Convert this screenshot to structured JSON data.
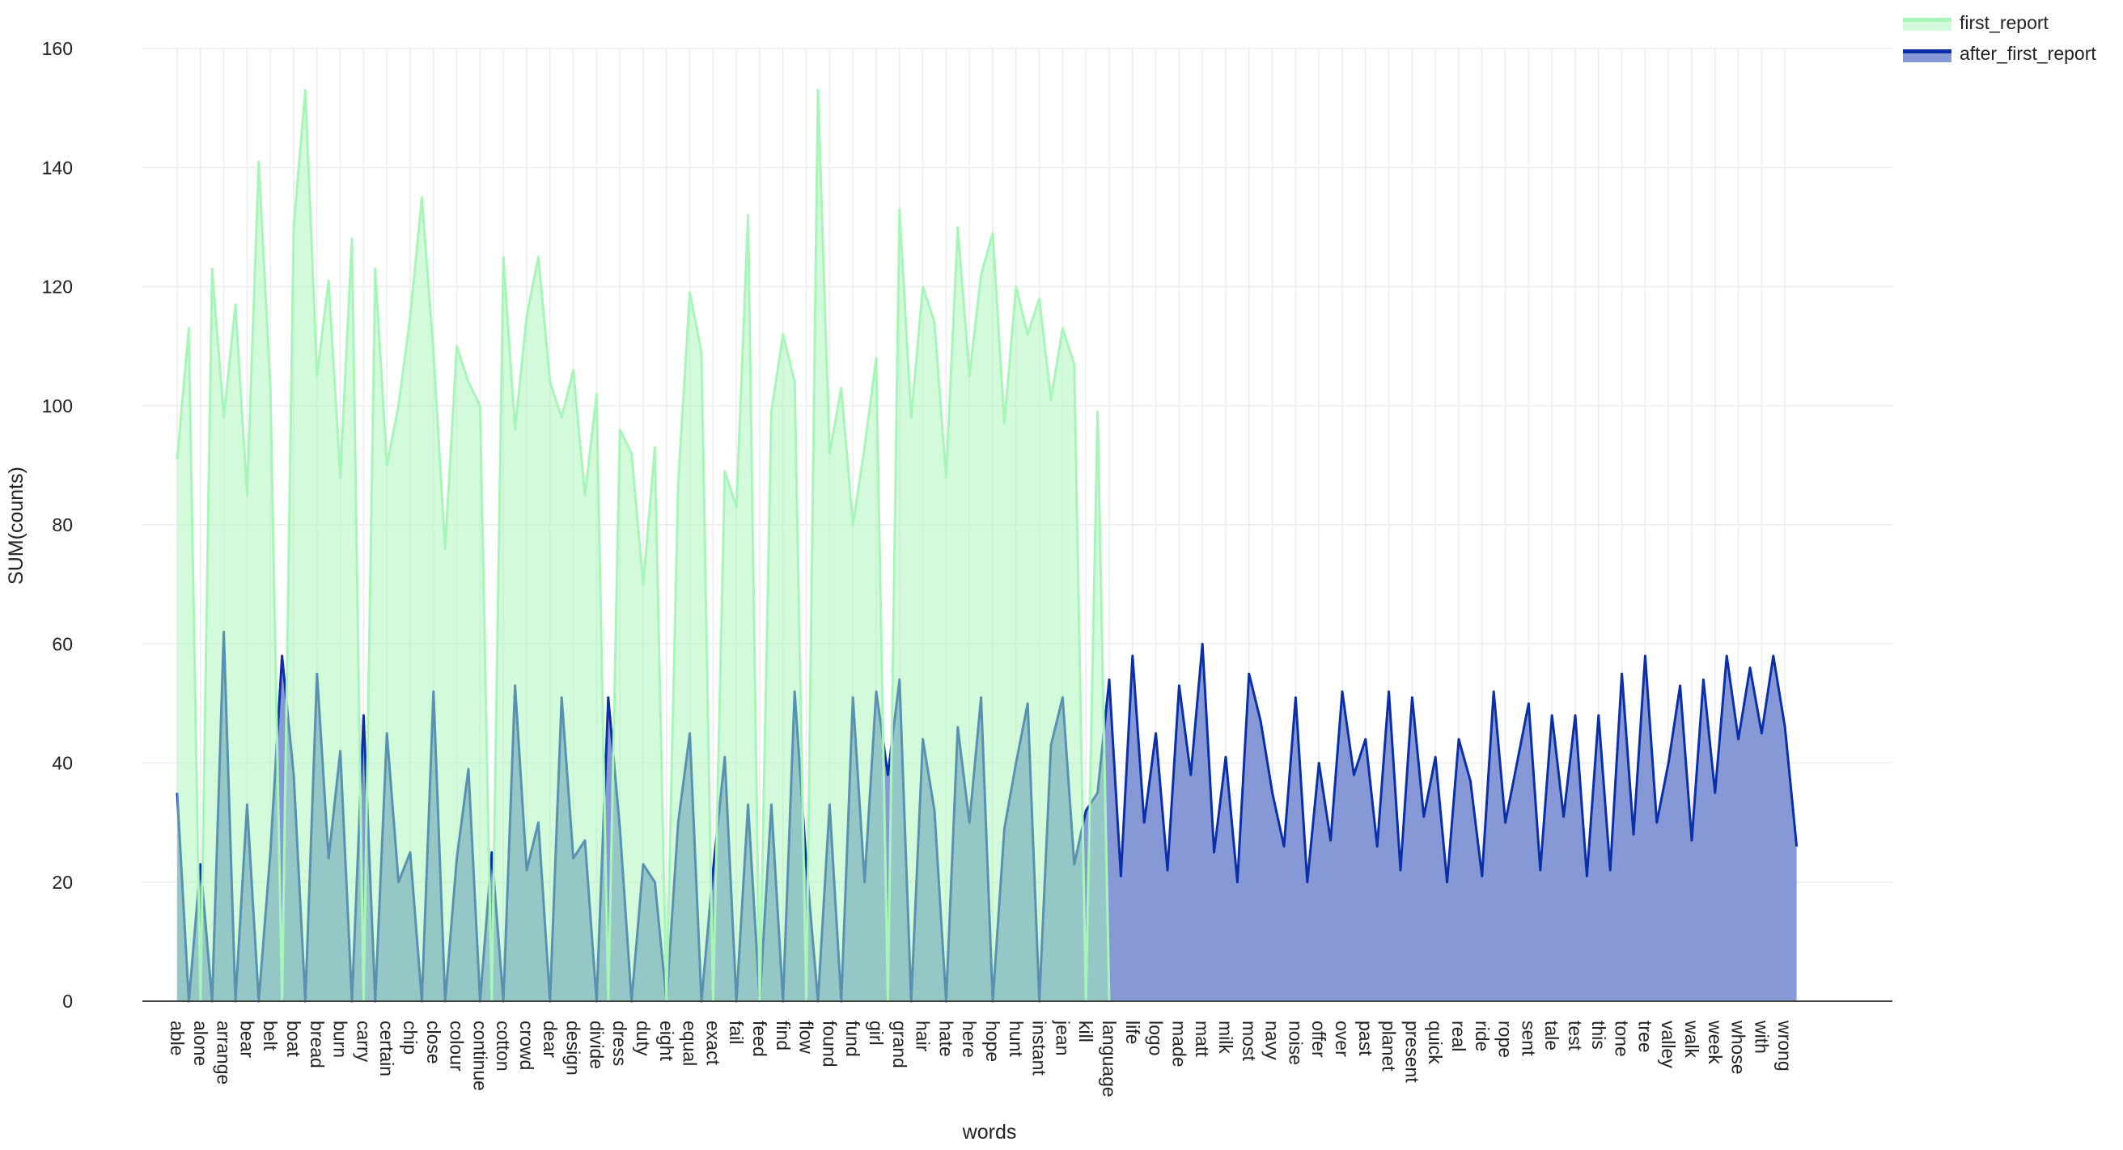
{
  "chart_data": {
    "type": "area",
    "xlabel": "words",
    "ylabel": "SUM(counts)",
    "ylim": [
      0,
      160
    ],
    "yticks": [
      0,
      20,
      40,
      60,
      80,
      100,
      120,
      140,
      160
    ],
    "grid": true,
    "legend_position": "top-right",
    "points_per_tick_label": 2,
    "x_tick_labels": [
      "able",
      "alone",
      "arrange",
      "bear",
      "belt",
      "boat",
      "bread",
      "burn",
      "carry",
      "certain",
      "chip",
      "close",
      "colour",
      "continue",
      "cotton",
      "crowd",
      "dear",
      "design",
      "divide",
      "dress",
      "duty",
      "eight",
      "equal",
      "exact",
      "fail",
      "feed",
      "find",
      "flow",
      "found",
      "fund",
      "girl",
      "grand",
      "hair",
      "hate",
      "here",
      "hope",
      "hunt",
      "instant",
      "jean",
      "kill",
      "language",
      "life",
      "logo",
      "made",
      "matt",
      "milk",
      "most",
      "navy",
      "noise",
      "offer",
      "over",
      "past",
      "planet",
      "present",
      "quick",
      "real",
      "ride",
      "rope",
      "sent",
      "tale",
      "test",
      "this",
      "tone",
      "tree",
      "valley",
      "walk",
      "week",
      "whose",
      "with",
      "wrong"
    ],
    "series": [
      {
        "name": "first_report",
        "line_color": "#a8f5b9",
        "fill_color": "#d3fadc",
        "values": [
          91,
          113,
          0,
          123,
          98,
          117,
          85,
          141,
          103,
          0,
          130,
          153,
          105,
          121,
          88,
          128,
          0,
          123,
          90,
          100,
          115,
          135,
          109,
          76,
          110,
          104,
          100,
          0,
          125,
          96,
          115,
          125,
          104,
          98,
          106,
          85,
          102,
          0,
          96,
          92,
          70,
          93,
          0,
          87,
          119,
          109,
          0,
          89,
          83,
          132,
          0,
          99,
          112,
          104,
          0,
          153,
          92,
          103,
          80,
          93,
          108,
          0,
          133,
          98,
          120,
          114,
          88,
          130,
          105,
          122,
          129,
          97,
          120,
          112,
          118,
          101,
          113,
          107,
          0,
          99,
          0,
          0,
          0,
          0,
          0,
          0,
          0,
          0,
          0,
          0,
          0,
          0,
          0,
          0,
          0,
          0,
          0,
          0,
          0,
          0,
          0,
          0,
          0,
          0,
          0,
          0,
          0,
          0,
          0,
          0,
          0,
          0,
          0,
          0,
          0,
          0,
          0,
          0,
          0,
          0,
          0,
          0,
          0,
          0,
          0,
          0,
          0,
          0,
          0,
          0,
          0,
          0,
          0,
          0,
          0,
          0,
          0,
          0,
          0,
          0
        ]
      },
      {
        "name": "after_first_report",
        "line_color": "#0a2fa8",
        "fill_color": "#8699d6",
        "values": [
          35,
          0,
          23,
          0,
          62,
          0,
          33,
          0,
          25,
          58,
          38,
          0,
          55,
          24,
          42,
          0,
          48,
          0,
          45,
          20,
          25,
          0,
          52,
          0,
          24,
          39,
          0,
          25,
          0,
          53,
          22,
          30,
          0,
          51,
          24,
          27,
          0,
          51,
          29,
          0,
          23,
          20,
          0,
          30,
          45,
          0,
          22,
          41,
          0,
          33,
          0,
          33,
          0,
          52,
          23,
          0,
          33,
          0,
          51,
          20,
          52,
          38,
          54,
          0,
          44,
          32,
          0,
          46,
          30,
          51,
          0,
          29,
          40,
          50,
          0,
          43,
          51,
          23,
          32,
          35,
          54,
          21,
          58,
          30,
          45,
          22,
          53,
          38,
          60,
          25,
          41,
          20,
          55,
          47,
          35,
          26,
          51,
          20,
          40,
          27,
          52,
          38,
          44,
          26,
          52,
          22,
          51,
          31,
          41,
          20,
          44,
          37,
          21,
          52,
          30,
          40,
          50,
          22,
          48,
          31,
          48,
          21,
          48,
          22,
          55,
          28,
          58,
          30,
          40,
          53,
          27,
          54,
          35,
          58,
          44,
          56,
          45,
          58,
          46,
          26
        ]
      }
    ]
  }
}
